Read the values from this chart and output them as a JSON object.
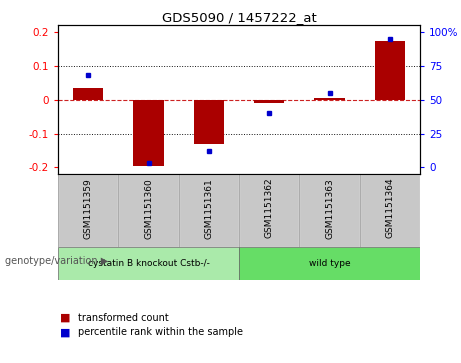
{
  "title": "GDS5090 / 1457222_at",
  "samples": [
    "GSM1151359",
    "GSM1151360",
    "GSM1151361",
    "GSM1151362",
    "GSM1151363",
    "GSM1151364"
  ],
  "red_values": [
    0.035,
    -0.195,
    -0.13,
    -0.01,
    0.005,
    0.175
  ],
  "blue_values_pct": [
    68,
    3,
    12,
    40,
    55,
    95
  ],
  "groups": [
    {
      "label": "cystatin B knockout Cstb-/-",
      "samples": [
        0,
        1,
        2
      ],
      "color": "#AAEAAA"
    },
    {
      "label": "wild type",
      "samples": [
        3,
        4,
        5
      ],
      "color": "#66DD66"
    }
  ],
  "ylim": [
    -0.22,
    0.22
  ],
  "yticks_left": [
    -0.2,
    -0.1,
    0.0,
    0.1,
    0.2
  ],
  "yticks_right_pct": [
    0,
    25,
    50,
    75,
    100
  ],
  "yticks_right_vals": [
    -0.2,
    -0.1,
    0.0,
    0.1,
    0.2
  ],
  "bar_color": "#AA0000",
  "dot_color": "#0000CC",
  "hline_color": "#CC2222",
  "grid_color": "#111111",
  "bg_plot": "#FFFFFF",
  "bg_xtick": "#C8C8C8",
  "legend_red": "transformed count",
  "legend_blue": "percentile rank within the sample",
  "genotype_label": "genotype/variation"
}
